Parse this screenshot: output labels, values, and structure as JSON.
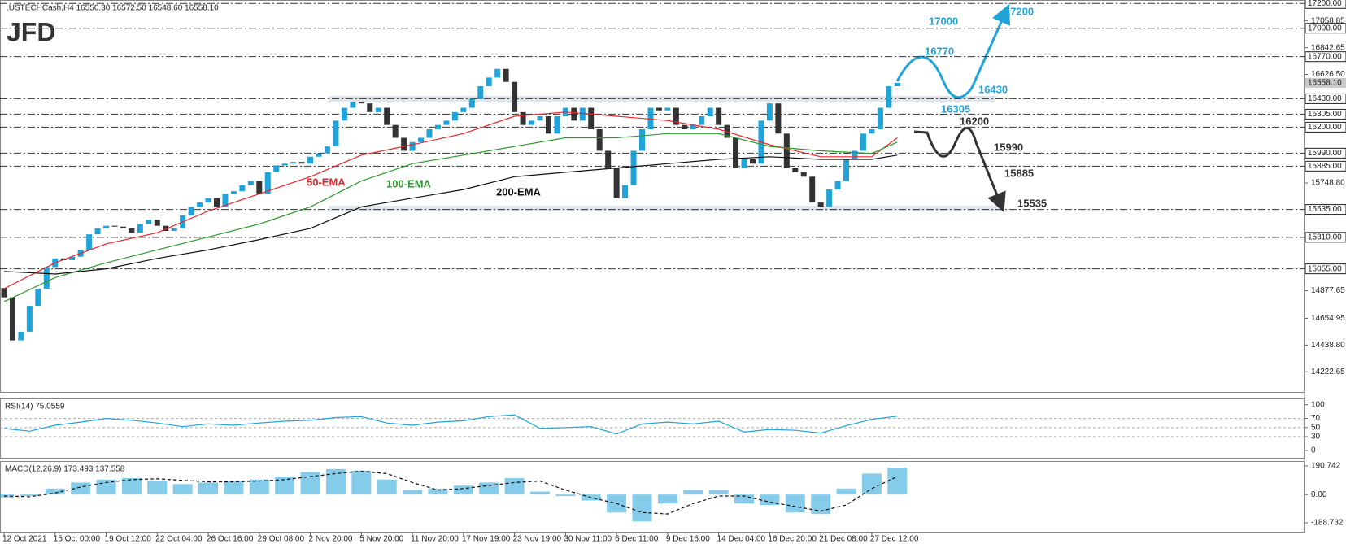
{
  "chart_data": [
    {
      "type": "candlestick",
      "logo": "JFD",
      "title": ".USTECHCash,H4  16550.30 16572.50 16548.60 16558.10",
      "up_color": "#1fa3d8",
      "down_color": "#333333",
      "categories": [
        "12 Oct 2021",
        null,
        null,
        null,
        null,
        null,
        "15 Oct 00:00",
        null,
        null,
        null,
        null,
        null,
        "19 Oct 12:00",
        null,
        null,
        null,
        null,
        null,
        "22 Oct 04:00",
        null,
        null,
        null,
        null,
        null,
        "26 Oct 16:00",
        null,
        null,
        null,
        null,
        null,
        "29 Oct 08:00",
        null,
        null,
        null,
        null,
        null,
        "2 Nov 20:00",
        null,
        null,
        null,
        null,
        null,
        "5 Nov 20:00",
        null,
        null,
        null,
        null,
        null,
        "11 Nov 20:00",
        null,
        null,
        null,
        null,
        null,
        "17 Nov 19:00",
        null,
        null,
        null,
        null,
        null,
        "23 Nov 19:00",
        null,
        null,
        null,
        null,
        null,
        "30 Nov 11:00",
        null,
        null,
        null,
        null,
        null,
        "6 Dec 11:00",
        null,
        null,
        null,
        null,
        null,
        "9 Dec 16:00",
        null,
        null,
        null,
        null,
        null,
        "14 Dec 04:00",
        null,
        null,
        null,
        null,
        null,
        "16 Dec 20:00",
        null,
        null,
        null,
        null,
        null,
        "21 Dec 08:00",
        null,
        null,
        null,
        null,
        null,
        "27 Dec 12:00",
        null,
        null,
        null
      ],
      "open": [
        14900,
        14825,
        14477,
        14547,
        14756,
        14895,
        15069,
        15139,
        15125,
        15153,
        15208,
        15334,
        15382,
        15403,
        15396,
        15382,
        15347,
        15417,
        15452,
        15403,
        15361,
        15382,
        15487,
        15556,
        15591,
        15626,
        15556,
        15661,
        15682,
        15731,
        15765,
        15661,
        15835,
        15891,
        15905,
        15919,
        15905,
        15961,
        15988,
        16044,
        16253,
        16357,
        16406,
        16392,
        16322,
        16357,
        16218,
        16114,
        16009,
        16079,
        16114,
        16183,
        16218,
        16253,
        16322,
        16357,
        16427,
        16531,
        16601,
        16671,
        16566,
        16322,
        16218,
        16253,
        16288,
        16148,
        16288,
        16357,
        16253,
        16357,
        16183,
        16009,
        15870,
        15626,
        15731,
        16009,
        16183,
        16357,
        16336,
        16357,
        16218,
        16183,
        16218,
        16288,
        16357,
        16218,
        16114,
        15870,
        15940,
        15905,
        16253,
        16392,
        16148,
        15870,
        15835,
        15800,
        15591,
        15556,
        15696,
        15765,
        15940,
        16009,
        16148,
        16183,
        16357,
        16531
      ],
      "close": [
        14825,
        14477,
        14547,
        14756,
        14895,
        15069,
        15139,
        15125,
        15153,
        15208,
        15334,
        15382,
        15403,
        15396,
        15382,
        15347,
        15417,
        15452,
        15403,
        15361,
        15382,
        15487,
        15556,
        15591,
        15626,
        15556,
        15661,
        15682,
        15731,
        15765,
        15661,
        15835,
        15891,
        15905,
        15919,
        15905,
        15961,
        15988,
        16044,
        16253,
        16357,
        16406,
        16392,
        16322,
        16357,
        16218,
        16114,
        16009,
        16079,
        16114,
        16183,
        16218,
        16253,
        16322,
        16357,
        16427,
        16531,
        16601,
        16671,
        16566,
        16322,
        16218,
        16253,
        16288,
        16148,
        16288,
        16357,
        16253,
        16357,
        16183,
        16009,
        15870,
        15626,
        15731,
        16009,
        16183,
        16357,
        16336,
        16357,
        16218,
        16183,
        16218,
        16288,
        16357,
        16218,
        16114,
        15870,
        15940,
        15905,
        16253,
        16392,
        16148,
        15870,
        15835,
        15800,
        15591,
        15556,
        15696,
        15765,
        15940,
        16009,
        16148,
        16183,
        16357,
        16531,
        16558.1
      ],
      "lines": [
        {
          "name": "50-EMA",
          "color": "#e8262b",
          "x": [
            0,
            6,
            12,
            18,
            24,
            30,
            36,
            42,
            48,
            54,
            60,
            66,
            72,
            78,
            84,
            90,
            96,
            102,
            105
          ],
          "values": [
            14895,
            15104,
            15257,
            15347,
            15522,
            15661,
            15800,
            15974,
            16058,
            16148,
            16288,
            16322,
            16288,
            16253,
            16183,
            16058,
            15961,
            15961,
            16114
          ]
        },
        {
          "name": "100-EMA",
          "color": "#2e9a2e",
          "x": [
            0,
            6,
            12,
            18,
            24,
            30,
            36,
            42,
            48,
            54,
            60,
            66,
            72,
            78,
            84,
            90,
            96,
            102,
            105
          ],
          "values": [
            14790,
            14985,
            15104,
            15208,
            15313,
            15417,
            15556,
            15765,
            15905,
            15974,
            16044,
            16114,
            16114,
            16148,
            16148,
            16044,
            16009,
            15988,
            16079
          ]
        },
        {
          "name": "200-EMA",
          "color": "#111111",
          "x": [
            0,
            6,
            12,
            18,
            24,
            30,
            36,
            42,
            48,
            54,
            60,
            66,
            72,
            78,
            84,
            90,
            96,
            102,
            105
          ],
          "values": [
            15034,
            15013,
            15055,
            15139,
            15208,
            15292,
            15382,
            15556,
            15626,
            15696,
            15800,
            15835,
            15870,
            15905,
            15940,
            15961,
            15940,
            15940,
            15974
          ]
        }
      ],
      "ylim": [
        14060,
        17228
      ],
      "yticks": [
        {
          "value": 17058.85,
          "label": "17058.85"
        },
        {
          "value": 16842.65,
          "label": "16842.65"
        },
        {
          "value": 16626.5,
          "label": "16626.50"
        },
        {
          "value": 15748.8,
          "label": "15748.80"
        },
        {
          "value": 14877.65,
          "label": "14877.65"
        },
        {
          "value": 14654.95,
          "label": "14654.95"
        },
        {
          "value": 14438.8,
          "label": "14438.80"
        },
        {
          "value": 14222.65,
          "label": "14222.65"
        }
      ],
      "levels": [
        {
          "value": 17200,
          "label": "17200.00"
        },
        {
          "value": 17000,
          "label": "17000.00"
        },
        {
          "value": 16770,
          "label": "16770.00"
        },
        {
          "value": 16430,
          "label": "16430.00"
        },
        {
          "value": 16305,
          "label": "16305.00"
        },
        {
          "value": 16200,
          "label": "16200.00"
        },
        {
          "value": 15990,
          "label": "15990.00"
        },
        {
          "value": 15885,
          "label": "15885.00"
        },
        {
          "value": 15535,
          "label": "15535.00"
        },
        {
          "value": 15310,
          "label": "15310.00"
        },
        {
          "value": 15055,
          "label": "15055.00"
        }
      ],
      "current_price": {
        "value": 16558.1,
        "label": "16558.10"
      },
      "scenario_up": {
        "color": "#1fa3d8",
        "values": [
          17000,
          17200,
          16770,
          16430,
          16305
        ]
      },
      "scenario_down": {
        "color": "#333333",
        "values": [
          16200,
          15990,
          15885,
          15535
        ]
      }
    },
    {
      "type": "line",
      "title": "RSI(14) 75.0559",
      "x": [
        0,
        3,
        6,
        9,
        12,
        15,
        18,
        21,
        24,
        27,
        30,
        33,
        36,
        39,
        42,
        45,
        48,
        51,
        54,
        57,
        60,
        63,
        66,
        69,
        72,
        75,
        78,
        81,
        84,
        87,
        90,
        93,
        96,
        99,
        102,
        105
      ],
      "series": [
        {
          "color": "#1fa3d8",
          "values": [
            48,
            42,
            55,
            62,
            70,
            66,
            60,
            52,
            58,
            55,
            60,
            64,
            66,
            72,
            74,
            60,
            55,
            62,
            65,
            74,
            78,
            48,
            50,
            52,
            36,
            58,
            62,
            58,
            64,
            40,
            46,
            44,
            38,
            54,
            68,
            75
          ]
        }
      ],
      "ylim": [
        -18,
        112
      ],
      "yticks": [
        100,
        70,
        50,
        30,
        0
      ],
      "levels": [
        70,
        50,
        30
      ]
    },
    {
      "type": "bar",
      "title": "MACD(12,26,9) 173.493 137.558",
      "x": [
        0,
        3,
        6,
        9,
        12,
        15,
        18,
        21,
        24,
        27,
        30,
        33,
        36,
        39,
        42,
        45,
        48,
        51,
        54,
        57,
        60,
        63,
        66,
        69,
        72,
        75,
        78,
        81,
        84,
        87,
        90,
        93,
        96,
        99,
        102,
        105
      ],
      "series": [
        {
          "type": "bar",
          "color": "#1fa3d8",
          "values": [
            -20,
            -10,
            40,
            80,
            100,
            110,
            90,
            70,
            80,
            90,
            100,
            120,
            150,
            170,
            160,
            100,
            30,
            40,
            60,
            80,
            110,
            20,
            -10,
            -40,
            -120,
            -180,
            -60,
            30,
            30,
            -60,
            -70,
            -120,
            -130,
            40,
            140,
            180
          ]
        },
        {
          "type": "line",
          "color": "#111111",
          "values": [
            -10,
            -15,
            10,
            50,
            80,
            100,
            105,
            95,
            85,
            85,
            90,
            100,
            120,
            140,
            155,
            140,
            80,
            30,
            40,
            60,
            80,
            90,
            30,
            -20,
            -60,
            -120,
            -130,
            -60,
            -10,
            -10,
            -50,
            -80,
            -110,
            -70,
            40,
            120
          ]
        }
      ],
      "ylim": [
        -254,
        218
      ],
      "yticks": [
        {
          "value": 190.742,
          "label": "190.742"
        },
        {
          "value": 0,
          "label": "0.00"
        },
        {
          "value": -188.732,
          "label": "-188.732"
        }
      ]
    }
  ]
}
